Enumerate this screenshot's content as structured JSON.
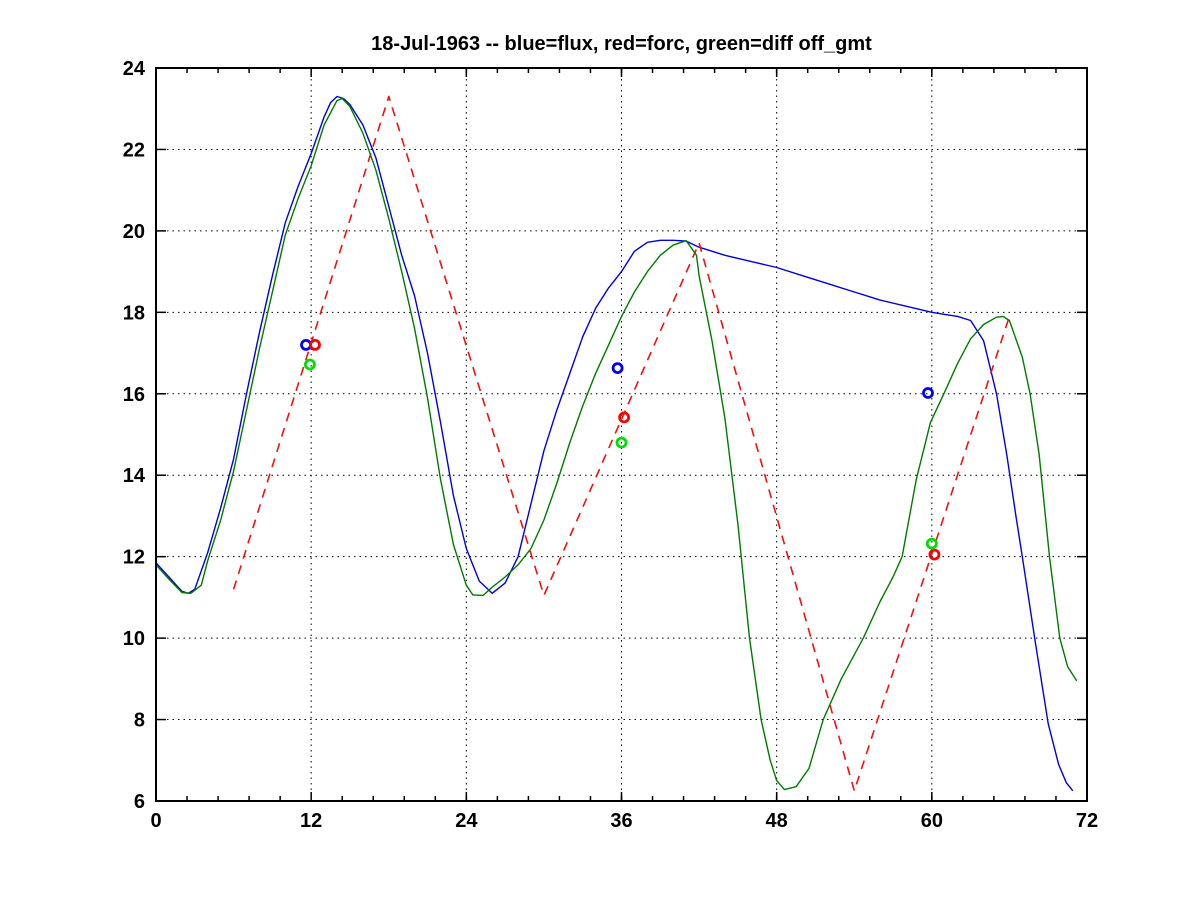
{
  "title": "18-Jul-1963 -- blue=flux, red=forc, green=diff off_gmt",
  "colors": {
    "flux_line": "#0000dd",
    "forc_line": "#ee1111",
    "diff_line": "#007a00",
    "flux_marker": "#0000ee",
    "forc_marker": "#ff0000",
    "diff_marker": "#00dd00",
    "axis": "#000000",
    "grid": "#000000",
    "background": "#ffffff"
  },
  "chart_data": {
    "type": "line",
    "title": "18-Jul-1963 -- blue=flux, red=forc, green=diff off_gmt",
    "xlabel": "",
    "ylabel": "",
    "xlim": [
      0,
      72
    ],
    "ylim": [
      6,
      24
    ],
    "xticks": [
      0,
      12,
      24,
      36,
      48,
      60,
      72
    ],
    "yticks": [
      6,
      8,
      10,
      12,
      14,
      16,
      18,
      20,
      22,
      24
    ],
    "x_minor_tick_step": 2.4,
    "grid": "dotted black lines at major ticks, box on, ticks inward mirrored",
    "legend_position": "encoded in title",
    "series": [
      {
        "name": "flux",
        "color": "#0000dd",
        "style": "solid",
        "points": [
          [
            0,
            11.85
          ],
          [
            1,
            11.5
          ],
          [
            2,
            11.15
          ],
          [
            2.5,
            11.1
          ],
          [
            3,
            11.2
          ],
          [
            4,
            12.1
          ],
          [
            5,
            13.2
          ],
          [
            6,
            14.4
          ],
          [
            7,
            16.0
          ],
          [
            8,
            17.5
          ],
          [
            9,
            18.9
          ],
          [
            10,
            20.2
          ],
          [
            11,
            21.1
          ],
          [
            12,
            21.9
          ],
          [
            13,
            22.8
          ],
          [
            13.5,
            23.15
          ],
          [
            14,
            23.3
          ],
          [
            14.5,
            23.25
          ],
          [
            15,
            23.1
          ],
          [
            16,
            22.6
          ],
          [
            17,
            21.8
          ],
          [
            18,
            20.6
          ],
          [
            19,
            19.4
          ],
          [
            20,
            18.4
          ],
          [
            21,
            17.0
          ],
          [
            22,
            15.3
          ],
          [
            23,
            13.5
          ],
          [
            24,
            12.2
          ],
          [
            25,
            11.4
          ],
          [
            26,
            11.1
          ],
          [
            27,
            11.35
          ],
          [
            28,
            12.0
          ],
          [
            29,
            13.3
          ],
          [
            30,
            14.6
          ],
          [
            31,
            15.6
          ],
          [
            32,
            16.5
          ],
          [
            33,
            17.4
          ],
          [
            34,
            18.1
          ],
          [
            35,
            18.6
          ],
          [
            36,
            19.0
          ],
          [
            37,
            19.5
          ],
          [
            38,
            19.72
          ],
          [
            39,
            19.77
          ],
          [
            40,
            19.77
          ],
          [
            41,
            19.75
          ],
          [
            42,
            19.6
          ],
          [
            44,
            19.4
          ],
          [
            46,
            19.25
          ],
          [
            48,
            19.1
          ],
          [
            50,
            18.9
          ],
          [
            52,
            18.7
          ],
          [
            54,
            18.5
          ],
          [
            56,
            18.3
          ],
          [
            58,
            18.15
          ],
          [
            60,
            18.0
          ],
          [
            61,
            17.95
          ],
          [
            62,
            17.9
          ],
          [
            63,
            17.8
          ],
          [
            64,
            17.3
          ],
          [
            65,
            16.0
          ],
          [
            65.8,
            14.5
          ],
          [
            66.5,
            13.0
          ],
          [
            67,
            12.0
          ],
          [
            68,
            9.9
          ],
          [
            69,
            7.9
          ],
          [
            69.8,
            6.9
          ],
          [
            70.4,
            6.45
          ],
          [
            70.9,
            6.25
          ]
        ]
      },
      {
        "name": "forc",
        "color": "#ee1111",
        "style": "dashed",
        "points": [
          [
            6,
            11.2
          ],
          [
            18,
            23.3
          ],
          [
            30,
            11.05
          ],
          [
            42,
            19.7
          ],
          [
            54,
            6.25
          ],
          [
            66,
            17.9
          ]
        ]
      },
      {
        "name": "diff",
        "color": "#007a00",
        "style": "solid",
        "points": [
          [
            0,
            11.8
          ],
          [
            1,
            11.45
          ],
          [
            2,
            11.12
          ],
          [
            2.7,
            11.1
          ],
          [
            3.5,
            11.3
          ],
          [
            4,
            11.9
          ],
          [
            5,
            12.9
          ],
          [
            6,
            14.1
          ],
          [
            7,
            15.6
          ],
          [
            8,
            17.1
          ],
          [
            9,
            18.5
          ],
          [
            10,
            19.9
          ],
          [
            11,
            20.8
          ],
          [
            12,
            21.6
          ],
          [
            13,
            22.6
          ],
          [
            14,
            23.2
          ],
          [
            14.4,
            23.25
          ],
          [
            15,
            23.05
          ],
          [
            16,
            22.4
          ],
          [
            17,
            21.5
          ],
          [
            18,
            20.3
          ],
          [
            19,
            19.0
          ],
          [
            20,
            17.6
          ],
          [
            21,
            15.9
          ],
          [
            22,
            13.9
          ],
          [
            23,
            12.3
          ],
          [
            24,
            11.3
          ],
          [
            24.5,
            11.06
          ],
          [
            25.3,
            11.05
          ],
          [
            26,
            11.25
          ],
          [
            27,
            11.5
          ],
          [
            28,
            11.8
          ],
          [
            29,
            12.2
          ],
          [
            30,
            12.9
          ],
          [
            31,
            13.8
          ],
          [
            32,
            14.8
          ],
          [
            33,
            15.7
          ],
          [
            34,
            16.5
          ],
          [
            35,
            17.2
          ],
          [
            36,
            17.9
          ],
          [
            37,
            18.5
          ],
          [
            38,
            19.0
          ],
          [
            39,
            19.4
          ],
          [
            40,
            19.65
          ],
          [
            41,
            19.76
          ],
          [
            41.8,
            19.4
          ],
          [
            42,
            18.9
          ],
          [
            43,
            17.3
          ],
          [
            44,
            15.4
          ],
          [
            45,
            12.8
          ],
          [
            45.9,
            10.0
          ],
          [
            46.8,
            8.0
          ],
          [
            47.5,
            7.0
          ],
          [
            48,
            6.5
          ],
          [
            48.6,
            6.28
          ],
          [
            49.5,
            6.35
          ],
          [
            50.5,
            6.8
          ],
          [
            51.6,
            8.0
          ],
          [
            53,
            9.0
          ],
          [
            54.7,
            10.0
          ],
          [
            56,
            10.9
          ],
          [
            57,
            11.5
          ],
          [
            57.7,
            12.0
          ],
          [
            58.8,
            13.9
          ],
          [
            59.9,
            15.3
          ],
          [
            61,
            16.05
          ],
          [
            62,
            16.75
          ],
          [
            63,
            17.35
          ],
          [
            64,
            17.7
          ],
          [
            65,
            17.88
          ],
          [
            65.5,
            17.9
          ],
          [
            66,
            17.8
          ],
          [
            67,
            16.9
          ],
          [
            67.6,
            16.0
          ],
          [
            68.3,
            14.5
          ],
          [
            69.1,
            12.0
          ],
          [
            69.9,
            10.0
          ],
          [
            70.5,
            9.3
          ],
          [
            71.2,
            8.95
          ]
        ]
      }
    ],
    "markers": [
      {
        "name": "flux-obs",
        "color": "#0000ee",
        "shape": "open-circle",
        "points": [
          [
            11.6,
            17.2
          ],
          [
            35.7,
            16.63
          ],
          [
            59.7,
            16.02
          ]
        ]
      },
      {
        "name": "forc-obs",
        "color": "#ff0000",
        "shape": "open-circle",
        "points": [
          [
            12.3,
            17.2
          ],
          [
            36.2,
            15.42
          ],
          [
            60.2,
            12.05
          ]
        ]
      },
      {
        "name": "diff-obs",
        "color": "#00dd00",
        "shape": "open-circle",
        "points": [
          [
            11.9,
            16.72
          ],
          [
            36.0,
            14.8
          ],
          [
            60.0,
            12.32
          ]
        ]
      }
    ]
  }
}
